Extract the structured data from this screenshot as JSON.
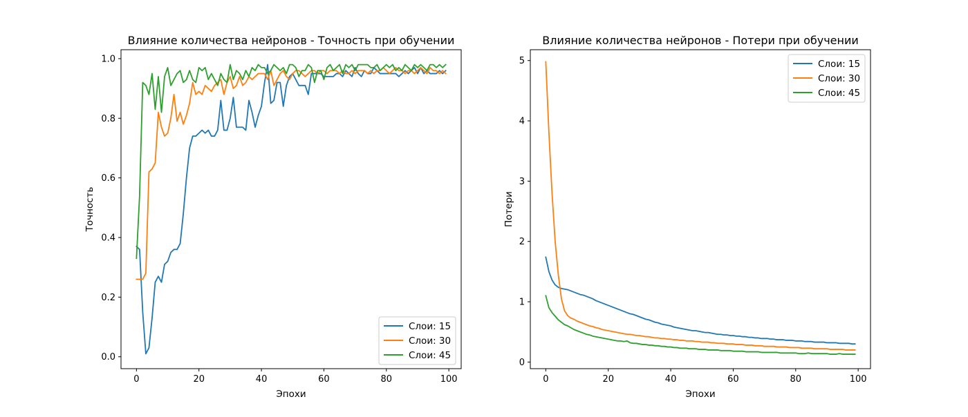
{
  "chart_data": [
    {
      "type": "line",
      "title": "Влияние количества нейронов - Точность при обучении",
      "xlabel": "Эпохи",
      "ylabel": "Точность",
      "xlim": [
        -4.95,
        103.95
      ],
      "ylim": [
        -0.04,
        1.03
      ],
      "xticks": [
        0,
        20,
        40,
        60,
        80,
        100
      ],
      "yticks": [
        0.0,
        0.2,
        0.4,
        0.6,
        0.8,
        1.0
      ],
      "xtick_labels": [
        "0",
        "20",
        "40",
        "60",
        "80",
        "100"
      ],
      "ytick_labels": [
        "0.0",
        "0.2",
        "0.4",
        "0.6",
        "0.8",
        "1.0"
      ],
      "legend_location": "lower-right",
      "series": [
        {
          "name": "Слои: 15",
          "color": "#1f77b4",
          "values": [
            0.37,
            0.36,
            0.15,
            0.01,
            0.03,
            0.13,
            0.25,
            0.27,
            0.25,
            0.31,
            0.32,
            0.35,
            0.36,
            0.36,
            0.38,
            0.48,
            0.6,
            0.7,
            0.74,
            0.74,
            0.75,
            0.76,
            0.75,
            0.76,
            0.74,
            0.74,
            0.76,
            0.86,
            0.76,
            0.76,
            0.8,
            0.87,
            0.77,
            0.77,
            0.77,
            0.76,
            0.86,
            0.82,
            0.77,
            0.81,
            0.84,
            0.92,
            0.98,
            0.85,
            0.86,
            0.92,
            0.92,
            0.84,
            0.91,
            0.94,
            0.95,
            0.93,
            0.91,
            0.91,
            0.91,
            0.88,
            0.95,
            0.95,
            0.95,
            0.95,
            0.94,
            0.94,
            0.94,
            0.94,
            0.95,
            0.95,
            0.94,
            0.96,
            0.95,
            0.94,
            0.97,
            0.95,
            0.94,
            0.96,
            0.95,
            0.95,
            0.97,
            0.96,
            0.95,
            0.95,
            0.95,
            0.95,
            0.95,
            0.95,
            0.94,
            0.95,
            0.96,
            0.95,
            0.96,
            0.97,
            0.95,
            0.97,
            0.95,
            0.96,
            0.95,
            0.95,
            0.95,
            0.96,
            0.95,
            0.96
          ]
        },
        {
          "name": "Слои: 30",
          "color": "#ff7f0e",
          "values": [
            0.26,
            0.26,
            0.26,
            0.28,
            0.62,
            0.63,
            0.65,
            0.82,
            0.77,
            0.74,
            0.75,
            0.8,
            0.88,
            0.79,
            0.82,
            0.78,
            0.81,
            0.85,
            0.92,
            0.88,
            0.89,
            0.88,
            0.91,
            0.9,
            0.89,
            0.91,
            0.92,
            0.93,
            0.88,
            0.92,
            0.94,
            0.9,
            0.91,
            0.94,
            0.91,
            0.92,
            0.94,
            0.93,
            0.94,
            0.95,
            0.95,
            0.95,
            0.93,
            0.96,
            0.91,
            0.93,
            0.95,
            0.96,
            0.94,
            0.93,
            0.95,
            0.96,
            0.96,
            0.95,
            0.94,
            0.95,
            0.96,
            0.96,
            0.95,
            0.96,
            0.96,
            0.95,
            0.96,
            0.96,
            0.96,
            0.95,
            0.96,
            0.95,
            0.95,
            0.96,
            0.95,
            0.96,
            0.96,
            0.96,
            0.95,
            0.96,
            0.95,
            0.96,
            0.96,
            0.97,
            0.96,
            0.95,
            0.96,
            0.97,
            0.96,
            0.96,
            0.95,
            0.96,
            0.96,
            0.95,
            0.96,
            0.97,
            0.96,
            0.95,
            0.97,
            0.96,
            0.96,
            0.95,
            0.96,
            0.95
          ]
        },
        {
          "name": "Слои: 45",
          "color": "#2ca02c",
          "values": [
            0.33,
            0.54,
            0.92,
            0.91,
            0.88,
            0.95,
            0.83,
            0.94,
            0.82,
            0.94,
            0.97,
            0.91,
            0.93,
            0.95,
            0.96,
            0.92,
            0.93,
            0.96,
            0.93,
            0.92,
            0.97,
            0.96,
            0.97,
            0.93,
            0.95,
            0.93,
            0.91,
            0.95,
            0.93,
            0.92,
            0.98,
            0.93,
            0.96,
            0.95,
            0.93,
            0.96,
            0.94,
            0.97,
            0.96,
            0.98,
            0.97,
            0.97,
            0.95,
            0.96,
            0.98,
            0.97,
            0.96,
            0.97,
            0.95,
            0.98,
            0.98,
            0.97,
            0.94,
            0.96,
            0.96,
            0.98,
            0.97,
            0.92,
            0.96,
            0.96,
            0.93,
            0.97,
            0.98,
            0.96,
            0.97,
            0.98,
            0.95,
            0.98,
            0.97,
            0.98,
            0.96,
            0.98,
            0.98,
            0.98,
            0.98,
            0.97,
            0.97,
            0.98,
            0.96,
            0.97,
            0.98,
            0.97,
            0.98,
            0.96,
            0.97,
            0.96,
            0.98,
            0.97,
            0.96,
            0.98,
            0.97,
            0.98,
            0.97,
            0.96,
            0.98,
            0.98,
            0.97,
            0.98,
            0.97,
            0.98
          ]
        }
      ]
    },
    {
      "type": "line",
      "title": "Влияние количества нейронов - Потери при обучении",
      "xlabel": "Эпохи",
      "ylabel": "Потери",
      "xlim": [
        -4.95,
        103.95
      ],
      "ylim": [
        -0.11,
        5.18
      ],
      "xticks": [
        0,
        20,
        40,
        60,
        80,
        100
      ],
      "yticks": [
        0,
        1,
        2,
        3,
        4,
        5
      ],
      "xtick_labels": [
        "0",
        "20",
        "40",
        "60",
        "80",
        "100"
      ],
      "ytick_labels": [
        "0",
        "1",
        "2",
        "3",
        "4",
        "5"
      ],
      "legend_location": "upper-right",
      "series": [
        {
          "name": "Слои: 15",
          "color": "#1f77b4",
          "values": [
            1.74,
            1.5,
            1.36,
            1.28,
            1.24,
            1.22,
            1.21,
            1.2,
            1.18,
            1.16,
            1.14,
            1.12,
            1.11,
            1.09,
            1.07,
            1.05,
            1.02,
            1.0,
            0.98,
            0.96,
            0.94,
            0.92,
            0.9,
            0.88,
            0.86,
            0.84,
            0.82,
            0.8,
            0.79,
            0.77,
            0.75,
            0.73,
            0.71,
            0.7,
            0.68,
            0.66,
            0.65,
            0.63,
            0.62,
            0.61,
            0.6,
            0.58,
            0.57,
            0.56,
            0.55,
            0.54,
            0.53,
            0.52,
            0.52,
            0.51,
            0.5,
            0.49,
            0.49,
            0.48,
            0.47,
            0.46,
            0.46,
            0.45,
            0.45,
            0.44,
            0.44,
            0.43,
            0.43,
            0.42,
            0.42,
            0.41,
            0.41,
            0.4,
            0.4,
            0.39,
            0.39,
            0.39,
            0.38,
            0.38,
            0.37,
            0.37,
            0.37,
            0.36,
            0.36,
            0.36,
            0.35,
            0.35,
            0.35,
            0.34,
            0.34,
            0.34,
            0.33,
            0.33,
            0.33,
            0.33,
            0.32,
            0.32,
            0.32,
            0.32,
            0.31,
            0.31,
            0.31,
            0.31,
            0.3,
            0.3
          ]
        },
        {
          "name": "Слои: 30",
          "color": "#ff7f0e",
          "values": [
            4.98,
            3.8,
            2.8,
            2.0,
            1.45,
            1.05,
            0.85,
            0.77,
            0.73,
            0.71,
            0.68,
            0.66,
            0.64,
            0.62,
            0.6,
            0.59,
            0.57,
            0.56,
            0.54,
            0.53,
            0.52,
            0.51,
            0.5,
            0.49,
            0.48,
            0.47,
            0.46,
            0.46,
            0.45,
            0.44,
            0.44,
            0.43,
            0.42,
            0.42,
            0.41,
            0.4,
            0.4,
            0.39,
            0.39,
            0.38,
            0.38,
            0.37,
            0.37,
            0.36,
            0.36,
            0.35,
            0.35,
            0.35,
            0.34,
            0.34,
            0.33,
            0.33,
            0.33,
            0.32,
            0.32,
            0.31,
            0.31,
            0.31,
            0.3,
            0.3,
            0.3,
            0.29,
            0.29,
            0.29,
            0.28,
            0.28,
            0.28,
            0.27,
            0.27,
            0.27,
            0.26,
            0.26,
            0.26,
            0.26,
            0.25,
            0.25,
            0.25,
            0.25,
            0.24,
            0.24,
            0.24,
            0.24,
            0.23,
            0.23,
            0.23,
            0.23,
            0.22,
            0.22,
            0.22,
            0.22,
            0.22,
            0.21,
            0.21,
            0.21,
            0.21,
            0.21,
            0.2,
            0.2,
            0.2,
            0.2
          ]
        },
        {
          "name": "Слои: 45",
          "color": "#2ca02c",
          "values": [
            1.1,
            0.9,
            0.82,
            0.76,
            0.7,
            0.66,
            0.62,
            0.6,
            0.57,
            0.54,
            0.52,
            0.5,
            0.48,
            0.46,
            0.45,
            0.43,
            0.42,
            0.41,
            0.4,
            0.39,
            0.38,
            0.37,
            0.36,
            0.35,
            0.35,
            0.34,
            0.35,
            0.32,
            0.31,
            0.31,
            0.3,
            0.29,
            0.29,
            0.28,
            0.28,
            0.27,
            0.27,
            0.26,
            0.26,
            0.25,
            0.25,
            0.24,
            0.24,
            0.23,
            0.23,
            0.23,
            0.22,
            0.22,
            0.22,
            0.21,
            0.21,
            0.21,
            0.2,
            0.2,
            0.2,
            0.2,
            0.19,
            0.19,
            0.19,
            0.19,
            0.18,
            0.18,
            0.18,
            0.18,
            0.17,
            0.17,
            0.17,
            0.17,
            0.17,
            0.16,
            0.16,
            0.16,
            0.16,
            0.16,
            0.16,
            0.15,
            0.15,
            0.15,
            0.15,
            0.15,
            0.15,
            0.14,
            0.14,
            0.14,
            0.15,
            0.14,
            0.14,
            0.14,
            0.14,
            0.14,
            0.14,
            0.13,
            0.13,
            0.13,
            0.14,
            0.13,
            0.13,
            0.13,
            0.13,
            0.13
          ]
        }
      ]
    }
  ]
}
